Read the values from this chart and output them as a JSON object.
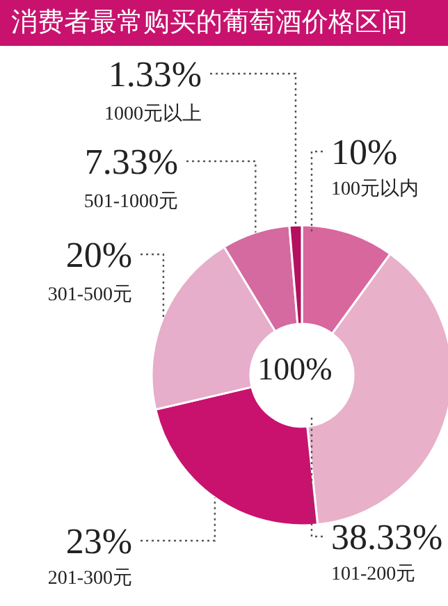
{
  "chart_data": {
    "type": "donut",
    "title": "消费者最常购买的葡萄酒价格区间",
    "categories": [
      "100元以内",
      "101-200元",
      "201-300元",
      "301-500元",
      "501-1000元",
      "1000元以上"
    ],
    "values": [
      10,
      38.33,
      23,
      20,
      7.33,
      1.33
    ],
    "colors": [
      "#d8679e",
      "#e8b0c9",
      "#c8126e",
      "#e6aecb",
      "#d46a9f",
      "#b5105f"
    ],
    "value_labels": [
      "10%",
      "38.33%",
      "23%",
      "20%",
      "7.33%",
      "1.33%"
    ],
    "annotations": [
      "100%"
    ]
  }
}
